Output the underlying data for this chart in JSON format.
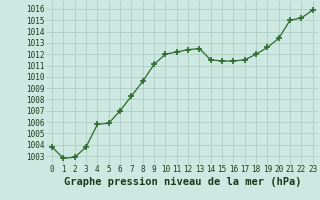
{
  "x": [
    0,
    1,
    2,
    3,
    4,
    5,
    6,
    7,
    8,
    9,
    10,
    11,
    12,
    13,
    14,
    15,
    16,
    17,
    18,
    19,
    20,
    21,
    22,
    23
  ],
  "y": [
    1003.8,
    1002.8,
    1002.9,
    1003.8,
    1005.8,
    1005.9,
    1007.0,
    1008.3,
    1009.6,
    1011.1,
    1012.0,
    1012.2,
    1012.4,
    1012.5,
    1011.5,
    1011.4,
    1011.4,
    1011.5,
    1012.0,
    1012.6,
    1013.4,
    1015.0,
    1015.2,
    1015.9
  ],
  "line_color": "#2d6a2d",
  "marker": "+",
  "marker_size": 4,
  "marker_lw": 1.2,
  "bg_color": "#cce8e0",
  "grid_color": "#aac8c0",
  "xlabel": "Graphe pression niveau de la mer (hPa)",
  "xlabel_fontsize": 7.5,
  "xlabel_color": "#1a3a1a",
  "ylabel_ticks": [
    1003,
    1004,
    1005,
    1006,
    1007,
    1008,
    1009,
    1010,
    1011,
    1012,
    1013,
    1014,
    1015,
    1016
  ],
  "ylim": [
    1002.3,
    1016.7
  ],
  "xlim": [
    -0.5,
    23.5
  ],
  "tick_fontsize": 5.5,
  "tick_color": "#1a3a1a",
  "line_width": 0.9
}
